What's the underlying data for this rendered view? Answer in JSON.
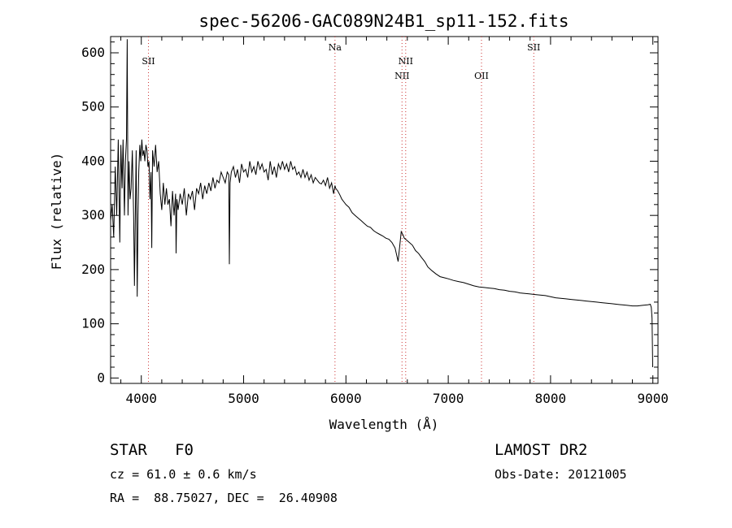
{
  "chart_data": {
    "type": "line",
    "title": "spec-56206-GAC089N24B1_sp11-152.fits",
    "xlabel": "Wavelength (Å)",
    "ylabel": "Flux (relative)",
    "xlim": [
      3700,
      9050
    ],
    "ylim": [
      -10,
      630
    ],
    "xticks": [
      4000,
      5000,
      6000,
      7000,
      8000,
      9000
    ],
    "yticks": [
      0,
      100,
      200,
      300,
      400,
      500,
      600
    ],
    "grid": false,
    "line_color": "#000000",
    "marker_color": "#cc3333",
    "spectral_lines": [
      {
        "label": "SII",
        "x": 4070,
        "row": 1
      },
      {
        "label": "Na",
        "x": 5893,
        "row": 0
      },
      {
        "label": "NII",
        "x": 6548,
        "row": 2
      },
      {
        "label": "NII",
        "x": 6584,
        "row": 1
      },
      {
        "label": "OII",
        "x": 7325,
        "row": 2
      },
      {
        "label": "SII",
        "x": 7836,
        "row": 0
      }
    ],
    "series": [
      {
        "x": [
          3700,
          3715,
          3730,
          3745,
          3760,
          3775,
          3790,
          3800,
          3812,
          3822,
          3835,
          3845,
          3855,
          3862,
          3870,
          3880,
          3890,
          3900,
          3912,
          3925,
          3933,
          3940,
          3950,
          3960,
          3968,
          3975,
          3985,
          3995,
          4005,
          4015,
          4025,
          4035,
          4045,
          4055,
          4065,
          4075,
          4085,
          4095,
          4102,
          4110,
          4125,
          4140,
          4155,
          4170,
          4185,
          4200,
          4215,
          4230,
          4245,
          4260,
          4275,
          4290,
          4305,
          4320,
          4335,
          4340,
          4348,
          4360,
          4380,
          4400,
          4420,
          4440,
          4460,
          4480,
          4500,
          4520,
          4540,
          4560,
          4580,
          4600,
          4620,
          4640,
          4660,
          4680,
          4700,
          4720,
          4740,
          4760,
          4780,
          4800,
          4820,
          4840,
          4855,
          4861,
          4868,
          4880,
          4900,
          4920,
          4940,
          4960,
          4980,
          5000,
          5020,
          5040,
          5060,
          5080,
          5100,
          5120,
          5140,
          5160,
          5180,
          5200,
          5220,
          5240,
          5260,
          5280,
          5300,
          5320,
          5340,
          5360,
          5380,
          5400,
          5420,
          5440,
          5460,
          5480,
          5500,
          5520,
          5540,
          5560,
          5580,
          5600,
          5620,
          5640,
          5660,
          5680,
          5700,
          5720,
          5740,
          5760,
          5780,
          5800,
          5820,
          5840,
          5860,
          5880,
          5893,
          5900,
          5920,
          5940,
          5960,
          5980,
          6000,
          6030,
          6060,
          6090,
          6120,
          6150,
          6180,
          6210,
          6240,
          6270,
          6300,
          6330,
          6360,
          6390,
          6420,
          6450,
          6480,
          6510,
          6540,
          6555,
          6563,
          6570,
          6590,
          6620,
          6650,
          6680,
          6710,
          6740,
          6770,
          6800,
          6840,
          6880,
          6920,
          6960,
          7000,
          7050,
          7100,
          7150,
          7200,
          7250,
          7300,
          7350,
          7400,
          7450,
          7500,
          7550,
          7600,
          7650,
          7700,
          7750,
          7800,
          7850,
          7900,
          7950,
          8000,
          8050,
          8100,
          8150,
          8200,
          8250,
          8300,
          8350,
          8400,
          8450,
          8500,
          8550,
          8600,
          8650,
          8700,
          8750,
          8800,
          8850,
          8900,
          8950,
          8975,
          8985,
          8992,
          8998
        ],
        "y": [
          290,
          320,
          260,
          390,
          300,
          440,
          250,
          430,
          350,
          440,
          300,
          400,
          440,
          625,
          300,
          400,
          330,
          350,
          420,
          300,
          170,
          280,
          420,
          150,
          300,
          380,
          430,
          400,
          440,
          410,
          420,
          400,
          430,
          420,
          390,
          400,
          330,
          380,
          240,
          420,
          390,
          430,
          380,
          400,
          340,
          310,
          360,
          320,
          350,
          320,
          330,
          280,
          345,
          300,
          340,
          230,
          330,
          310,
          340,
          320,
          350,
          300,
          340,
          330,
          345,
          310,
          350,
          340,
          360,
          330,
          355,
          340,
          360,
          345,
          370,
          350,
          365,
          360,
          380,
          370,
          360,
          380,
          375,
          210,
          360,
          380,
          390,
          370,
          385,
          360,
          395,
          380,
          385,
          370,
          400,
          380,
          390,
          375,
          400,
          385,
          395,
          380,
          385,
          365,
          400,
          375,
          390,
          370,
          395,
          385,
          400,
          385,
          395,
          380,
          400,
          385,
          390,
          375,
          380,
          370,
          385,
          370,
          380,
          365,
          375,
          360,
          370,
          365,
          360,
          358,
          365,
          355,
          370,
          350,
          360,
          340,
          355,
          350,
          345,
          338,
          330,
          325,
          320,
          315,
          305,
          300,
          295,
          290,
          285,
          280,
          278,
          272,
          268,
          265,
          262,
          258,
          256,
          250,
          240,
          215,
          270,
          265,
          262,
          258,
          255,
          250,
          245,
          235,
          230,
          222,
          215,
          205,
          198,
          192,
          187,
          185,
          183,
          180,
          178,
          176,
          173,
          170,
          168,
          167,
          166,
          165,
          163,
          162,
          160,
          159,
          157,
          156,
          155,
          154,
          153,
          152,
          150,
          148,
          147,
          146,
          145,
          144,
          143,
          142,
          141,
          140,
          139,
          138,
          137,
          136,
          135,
          134,
          133,
          133,
          134,
          135,
          136,
          130,
          110,
          20
        ]
      }
    ]
  },
  "footer": {
    "object_line": "STAR   F0",
    "survey": "LAMOST DR2",
    "cz_line": "cz = 61.0 ± 0.6 km/s",
    "obs_date": "Obs-Date: 20121005",
    "coords": "RA =  88.75027, DEC =  26.40908"
  }
}
